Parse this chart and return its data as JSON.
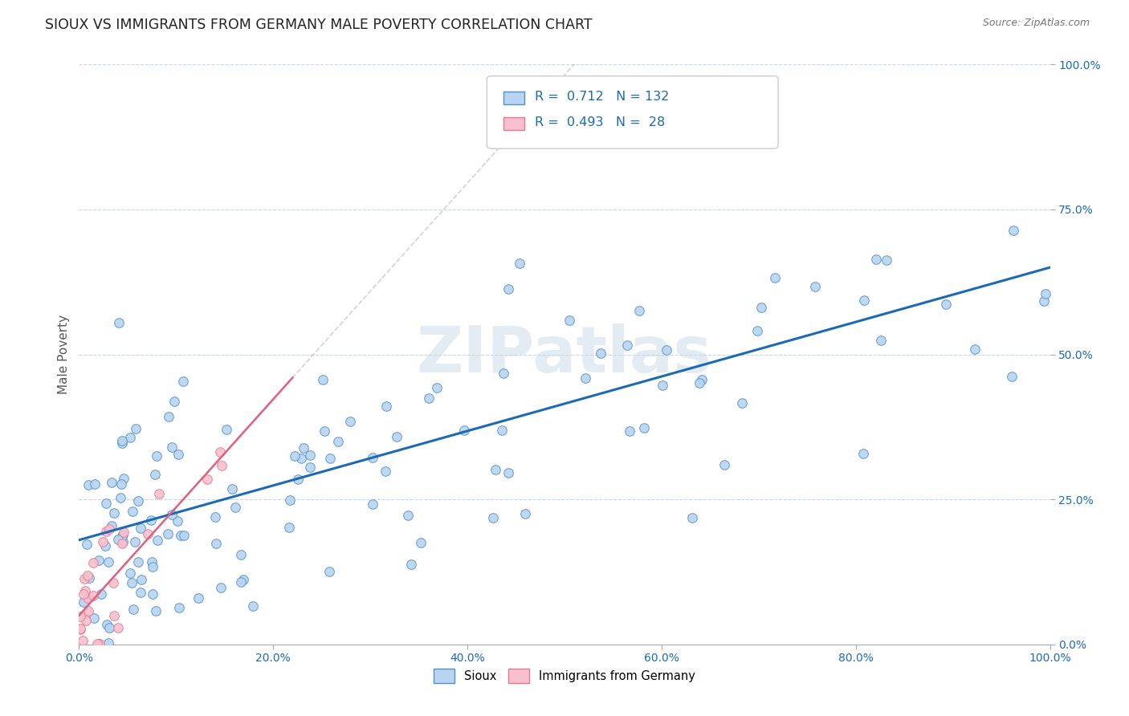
{
  "title": "SIOUX VS IMMIGRANTS FROM GERMANY MALE POVERTY CORRELATION CHART",
  "source": "Source: ZipAtlas.com",
  "ylabel": "Male Poverty",
  "ytick_labels": [
    "0.0%",
    "25.0%",
    "50.0%",
    "75.0%",
    "100.0%"
  ],
  "ytick_values": [
    0.0,
    0.25,
    0.5,
    0.75,
    1.0
  ],
  "xtick_values": [
    0.0,
    0.2,
    0.4,
    0.6,
    0.8,
    1.0
  ],
  "xtick_labels": [
    "0.0%",
    "20.0%",
    "40.0%",
    "60.0%",
    "80.0%",
    "100.0%"
  ],
  "sioux_color": "#b8d4f0",
  "sioux_edge_color": "#5090d0",
  "sioux_line_color": "#1a6ab5",
  "germany_color": "#f8c0cc",
  "germany_edge_color": "#e87890",
  "germany_line_color": "#e06080",
  "watermark": "ZIPatlas",
  "background_color": "#ffffff",
  "grid_color": "#c8d8e8",
  "R_sioux": 0.712,
  "N_sioux": 132,
  "R_germany": 0.493,
  "N_germany": 28,
  "sioux_line_x0": 0.0,
  "sioux_line_y0": 0.18,
  "sioux_line_x1": 1.0,
  "sioux_line_y1": 0.65,
  "germany_line_x0": 0.0,
  "germany_line_y0": 0.05,
  "germany_line_x1": 0.22,
  "germany_line_y1": 0.46
}
